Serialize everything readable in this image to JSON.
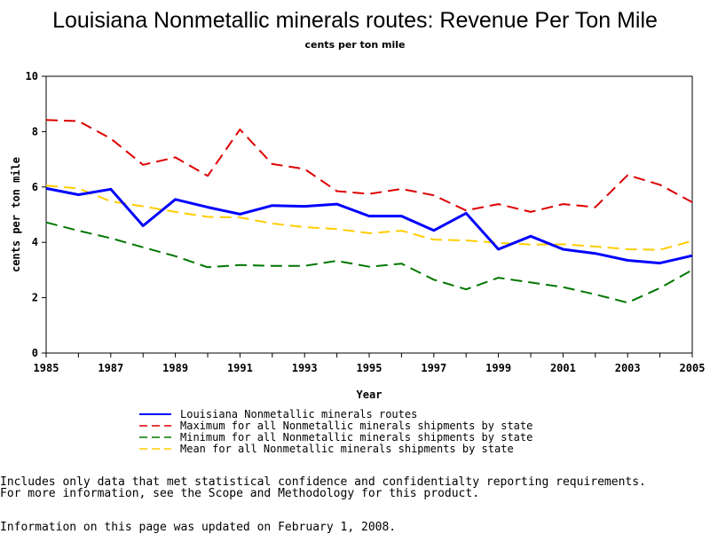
{
  "chart_data": {
    "type": "line",
    "title": "Louisiana Nonmetallic minerals routes: Revenue Per Ton Mile",
    "subtitle": "cents per ton mile",
    "xlabel": "Year",
    "ylabel": "cents per ton mile",
    "xlim": [
      1985,
      2005
    ],
    "ylim": [
      0,
      10
    ],
    "x_ticks": [
      "1985",
      "1987",
      "1989",
      "1991",
      "1993",
      "1995",
      "1997",
      "1999",
      "2001",
      "2003",
      "2005"
    ],
    "y_ticks": [
      "0",
      "2",
      "4",
      "6",
      "8",
      "10"
    ],
    "x": [
      1985,
      1986,
      1987,
      1988,
      1989,
      1990,
      1991,
      1992,
      1993,
      1994,
      1995,
      1996,
      1997,
      1998,
      1999,
      2000,
      2001,
      2002,
      2003,
      2004,
      2005
    ],
    "grid": false,
    "legend_position": "bottom",
    "series": [
      {
        "name": "Louisiana Nonmetallic minerals routes",
        "color": "#0000ff",
        "style": "solid",
        "values": [
          5.95,
          5.72,
          5.92,
          4.6,
          5.55,
          5.27,
          5.02,
          5.33,
          5.3,
          5.38,
          4.95,
          4.95,
          4.43,
          5.05,
          3.75,
          4.22,
          3.75,
          3.6,
          3.35,
          3.25,
          3.52
        ]
      },
      {
        "name": "Maximum for all Nonmetallic minerals shipments by state",
        "color": "#dd0000",
        "style": "dashed",
        "values": [
          8.42,
          8.38,
          7.75,
          6.8,
          7.07,
          6.4,
          8.08,
          6.83,
          6.65,
          5.85,
          5.75,
          5.93,
          5.7,
          5.15,
          5.38,
          5.1,
          5.38,
          5.27,
          6.43,
          6.08,
          5.45
        ]
      },
      {
        "name": "Minimum for all Nonmetallic minerals shipments by state",
        "color": "#007700",
        "style": "dashed",
        "values": [
          4.72,
          4.42,
          4.15,
          3.82,
          3.5,
          3.1,
          3.18,
          3.15,
          3.15,
          3.33,
          3.12,
          3.23,
          2.65,
          2.3,
          2.72,
          2.55,
          2.38,
          2.12,
          1.82,
          2.35,
          3.0
        ]
      },
      {
        "name": "Mean for all Nonmetallic minerals shipments by state",
        "color": "#ffcc00",
        "style": "dashed",
        "values": [
          6.05,
          5.95,
          5.48,
          5.3,
          5.1,
          4.92,
          4.9,
          4.68,
          4.55,
          4.48,
          4.33,
          4.42,
          4.1,
          4.07,
          3.98,
          3.92,
          3.93,
          3.85,
          3.75,
          3.73,
          4.05
        ]
      }
    ]
  },
  "notes": {
    "line1": "Includes only data that met statistical confidence and confidentialty reporting requirements.",
    "line2": "For more information, see the Scope and Methodology for this product.",
    "updated": "Information on this page was updated on February 1, 2008."
  }
}
